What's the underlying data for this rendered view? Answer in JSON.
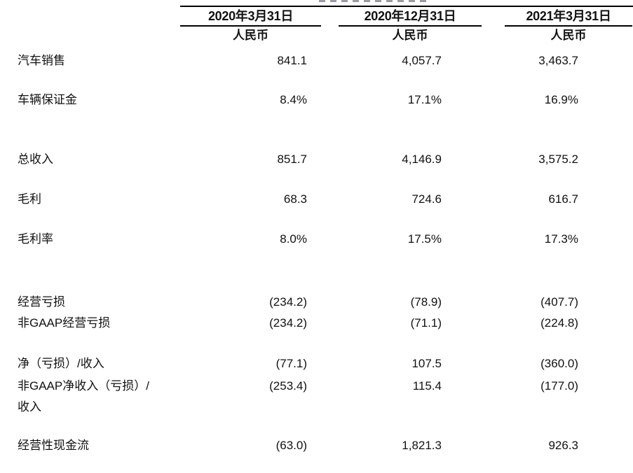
{
  "table": {
    "columns": [
      {
        "date": "2020年3月31日",
        "currency": "人民币"
      },
      {
        "date": "2020年12月31日",
        "currency": "人民币"
      },
      {
        "date": "2021年3月31日",
        "currency": "人民币"
      }
    ],
    "rows": [
      {
        "label": "汽车销售",
        "values": [
          "841.1",
          "4,057.7",
          "3,463.7"
        ]
      },
      {
        "label": "车辆保证金",
        "values": [
          "8.4%",
          "17.1%",
          "16.9%"
        ]
      },
      {
        "label": "总收入",
        "values": [
          "851.7",
          "4,146.9",
          "3,575.2"
        ]
      },
      {
        "label": "毛利",
        "values": [
          "68.3",
          "724.6",
          "616.7"
        ]
      },
      {
        "label": "毛利率",
        "values": [
          "8.0%",
          "17.5%",
          "17.3%"
        ]
      },
      {
        "label": "经营亏损",
        "values": [
          "(234.2)",
          "(78.9)",
          "(407.7)"
        ]
      },
      {
        "label": "非GAAP经营亏损",
        "values": [
          "(234.2)",
          "(71.1)",
          "(224.8)"
        ]
      },
      {
        "label": "净（亏损）/收入",
        "values": [
          "(77.1)",
          "107.5",
          "(360.0)"
        ]
      },
      {
        "label": "非GAAP净收入（亏损）/收入",
        "values": [
          "(253.4)",
          "115.4",
          "(177.0)"
        ]
      },
      {
        "label": "经营性现金流",
        "values": [
          "(63.0)",
          "1,821.3",
          "926.3"
        ]
      }
    ],
    "colors": {
      "text": "#111111",
      "rule": "#000000",
      "background": "#ffffff"
    }
  }
}
